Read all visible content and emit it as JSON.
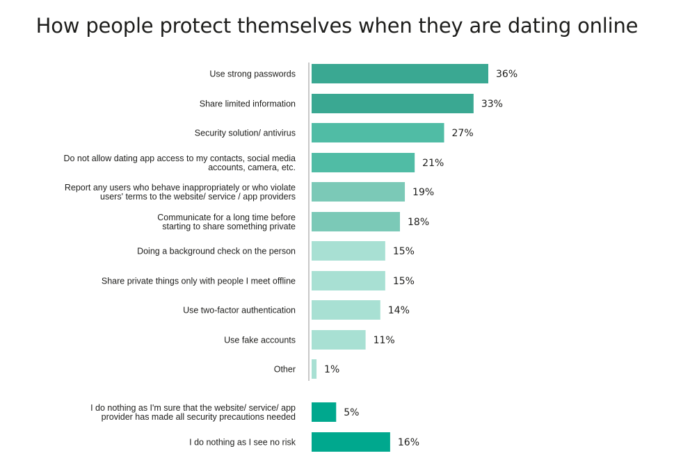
{
  "title": "How people protect themselves when they are dating online",
  "chart_data": {
    "type": "bar",
    "orientation": "horizontal",
    "title": "How people protect themselves when they are dating online",
    "value_suffix": "%",
    "xlim": [
      0,
      40
    ],
    "grid": false,
    "bars": [
      {
        "label": [
          "Use strong passwords"
        ],
        "value": 36,
        "color": "#3aa892"
      },
      {
        "label": [
          "Share limited information"
        ],
        "value": 33,
        "color": "#3aa892"
      },
      {
        "label": [
          "Security solution/ antivirus"
        ],
        "value": 27,
        "color": "#50bca5"
      },
      {
        "label": [
          "Do not allow dating app access to my contacts, social media",
          "accounts, camera, etc."
        ],
        "value": 21,
        "color": "#50bca5"
      },
      {
        "label": [
          "Report any users who behave inappropriately or who violate",
          "users' terms to the website/ service / app providers"
        ],
        "value": 19,
        "color": "#7bc9b7"
      },
      {
        "label": [
          "Communicate for a long time before",
          "starting to share something private"
        ],
        "value": 18,
        "color": "#7bc9b7"
      },
      {
        "label": [
          "Doing a background check on the person"
        ],
        "value": 15,
        "color": "#a8e0d3"
      },
      {
        "label": [
          "Share private things only with people I meet offline"
        ],
        "value": 15,
        "color": "#a8e0d3"
      },
      {
        "label": [
          "Use two-factor authentication"
        ],
        "value": 14,
        "color": "#a8e0d3"
      },
      {
        "label": [
          "Use fake accounts"
        ],
        "value": 11,
        "color": "#a8e0d3"
      },
      {
        "label": [
          "Other"
        ],
        "value": 1,
        "color": "#a8e0d3"
      },
      {
        "label": [
          "I do nothing as I'm sure that the website/ service/ app",
          "provider has made all security precautions needed"
        ],
        "value": 5,
        "color": "#00a88e"
      },
      {
        "label": [
          "I do nothing as I see no risk"
        ],
        "value": 16,
        "color": "#00a88e"
      }
    ]
  }
}
